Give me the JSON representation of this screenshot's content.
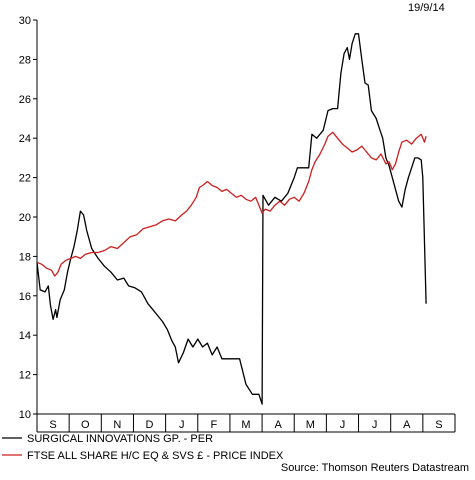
{
  "date_label": "19/9/14",
  "source": "Source: Thomson Reuters Datastream",
  "chart_data": {
    "type": "line",
    "ylim": [
      10,
      30
    ],
    "yticks": [
      "10",
      "12",
      "14",
      "16",
      "18",
      "20",
      "22",
      "24",
      "26",
      "28",
      "30"
    ],
    "months": [
      "S",
      "O",
      "N",
      "D",
      "J",
      "F",
      "M",
      "A",
      "M",
      "J",
      "J",
      "A",
      "S"
    ],
    "grid": false,
    "legend_position": "bottom",
    "series": [
      {
        "name": "SURGICAL INNOVATIONS GP. - PER",
        "color": "#000000",
        "values": [
          [
            0.0,
            17.7
          ],
          [
            0.1,
            16.3
          ],
          [
            0.25,
            16.2
          ],
          [
            0.35,
            16.5
          ],
          [
            0.42,
            15.5
          ],
          [
            0.5,
            14.8
          ],
          [
            0.58,
            15.3
          ],
          [
            0.62,
            14.9
          ],
          [
            0.72,
            15.8
          ],
          [
            0.85,
            16.3
          ],
          [
            0.95,
            17.2
          ],
          [
            1.05,
            17.9
          ],
          [
            1.15,
            18.5
          ],
          [
            1.25,
            19.3
          ],
          [
            1.35,
            20.3
          ],
          [
            1.45,
            20.1
          ],
          [
            1.55,
            19.3
          ],
          [
            1.7,
            18.4
          ],
          [
            1.9,
            17.9
          ],
          [
            2.1,
            17.5
          ],
          [
            2.3,
            17.2
          ],
          [
            2.5,
            16.8
          ],
          [
            2.7,
            16.9
          ],
          [
            2.85,
            16.5
          ],
          [
            3.05,
            16.4
          ],
          [
            3.25,
            16.2
          ],
          [
            3.45,
            15.6
          ],
          [
            3.6,
            15.3
          ],
          [
            3.75,
            15.0
          ],
          [
            3.9,
            14.7
          ],
          [
            4.05,
            14.3
          ],
          [
            4.2,
            13.7
          ],
          [
            4.3,
            13.4
          ],
          [
            4.4,
            12.6
          ],
          [
            4.55,
            13.1
          ],
          [
            4.7,
            13.8
          ],
          [
            4.85,
            13.4
          ],
          [
            5.0,
            13.8
          ],
          [
            5.15,
            13.4
          ],
          [
            5.3,
            13.6
          ],
          [
            5.45,
            13.0
          ],
          [
            5.6,
            13.4
          ],
          [
            5.75,
            12.8
          ],
          [
            6.0,
            12.8
          ],
          [
            6.3,
            12.8
          ],
          [
            6.5,
            11.5
          ],
          [
            6.7,
            11.0
          ],
          [
            6.9,
            11.0
          ],
          [
            7.0,
            10.5
          ],
          [
            7.03,
            21.1
          ],
          [
            7.2,
            20.6
          ],
          [
            7.4,
            21.0
          ],
          [
            7.6,
            20.8
          ],
          [
            7.8,
            21.2
          ],
          [
            8.0,
            22.0
          ],
          [
            8.1,
            22.5
          ],
          [
            8.3,
            22.5
          ],
          [
            8.45,
            22.5
          ],
          [
            8.55,
            24.2
          ],
          [
            8.7,
            24.0
          ],
          [
            8.9,
            24.4
          ],
          [
            9.05,
            25.4
          ],
          [
            9.2,
            25.5
          ],
          [
            9.35,
            25.5
          ],
          [
            9.45,
            27.3
          ],
          [
            9.55,
            28.3
          ],
          [
            9.65,
            28.6
          ],
          [
            9.72,
            28.0
          ],
          [
            9.8,
            28.8
          ],
          [
            9.9,
            29.3
          ],
          [
            10.0,
            29.3
          ],
          [
            10.1,
            28.0
          ],
          [
            10.2,
            26.8
          ],
          [
            10.3,
            26.7
          ],
          [
            10.4,
            25.4
          ],
          [
            10.55,
            25.0
          ],
          [
            10.65,
            24.5
          ],
          [
            10.75,
            24.0
          ],
          [
            10.85,
            23.0
          ],
          [
            10.95,
            22.6
          ],
          [
            11.05,
            22.0
          ],
          [
            11.15,
            21.4
          ],
          [
            11.25,
            20.8
          ],
          [
            11.35,
            20.5
          ],
          [
            11.45,
            21.4
          ],
          [
            11.55,
            22.0
          ],
          [
            11.65,
            22.5
          ],
          [
            11.75,
            23.0
          ],
          [
            11.85,
            23.0
          ],
          [
            11.95,
            22.9
          ],
          [
            12.0,
            22.0
          ],
          [
            12.1,
            15.6
          ]
        ]
      },
      {
        "name": "FTSE ALL SHARE H/C EQ & SVS £ - PRICE INDEX",
        "color": "#cc1f1f",
        "values": [
          [
            0.0,
            17.7
          ],
          [
            0.15,
            17.6
          ],
          [
            0.3,
            17.4
          ],
          [
            0.45,
            17.3
          ],
          [
            0.55,
            17.0
          ],
          [
            0.65,
            17.2
          ],
          [
            0.75,
            17.6
          ],
          [
            0.9,
            17.8
          ],
          [
            1.05,
            17.9
          ],
          [
            1.2,
            18.0
          ],
          [
            1.35,
            17.9
          ],
          [
            1.5,
            18.1
          ],
          [
            1.7,
            18.2
          ],
          [
            1.9,
            18.2
          ],
          [
            2.1,
            18.3
          ],
          [
            2.3,
            18.5
          ],
          [
            2.5,
            18.4
          ],
          [
            2.7,
            18.7
          ],
          [
            2.9,
            19.0
          ],
          [
            3.1,
            19.1
          ],
          [
            3.3,
            19.4
          ],
          [
            3.5,
            19.5
          ],
          [
            3.7,
            19.6
          ],
          [
            3.9,
            19.8
          ],
          [
            4.1,
            19.9
          ],
          [
            4.3,
            19.8
          ],
          [
            4.5,
            20.1
          ],
          [
            4.65,
            20.3
          ],
          [
            4.8,
            20.6
          ],
          [
            4.95,
            21.0
          ],
          [
            5.05,
            21.5
          ],
          [
            5.15,
            21.6
          ],
          [
            5.3,
            21.8
          ],
          [
            5.45,
            21.6
          ],
          [
            5.6,
            21.5
          ],
          [
            5.75,
            21.3
          ],
          [
            5.9,
            21.4
          ],
          [
            6.05,
            21.2
          ],
          [
            6.2,
            21.0
          ],
          [
            6.35,
            21.1
          ],
          [
            6.5,
            20.9
          ],
          [
            6.65,
            20.8
          ],
          [
            6.8,
            21.0
          ],
          [
            6.9,
            20.6
          ],
          [
            7.0,
            20.2
          ],
          [
            7.1,
            20.4
          ],
          [
            7.25,
            20.3
          ],
          [
            7.4,
            20.6
          ],
          [
            7.55,
            20.8
          ],
          [
            7.7,
            20.6
          ],
          [
            7.85,
            20.9
          ],
          [
            8.0,
            21.0
          ],
          [
            8.15,
            20.8
          ],
          [
            8.3,
            21.2
          ],
          [
            8.45,
            21.8
          ],
          [
            8.55,
            22.4
          ],
          [
            8.65,
            22.8
          ],
          [
            8.8,
            23.2
          ],
          [
            8.95,
            23.7
          ],
          [
            9.05,
            24.1
          ],
          [
            9.2,
            24.3
          ],
          [
            9.35,
            24.0
          ],
          [
            9.5,
            23.7
          ],
          [
            9.65,
            23.5
          ],
          [
            9.8,
            23.3
          ],
          [
            9.95,
            23.4
          ],
          [
            10.1,
            23.6
          ],
          [
            10.25,
            23.3
          ],
          [
            10.4,
            23.0
          ],
          [
            10.55,
            22.9
          ],
          [
            10.7,
            23.2
          ],
          [
            10.85,
            22.7
          ],
          [
            10.95,
            22.8
          ],
          [
            11.05,
            22.4
          ],
          [
            11.15,
            22.7
          ],
          [
            11.25,
            23.3
          ],
          [
            11.35,
            23.8
          ],
          [
            11.5,
            23.9
          ],
          [
            11.65,
            23.7
          ],
          [
            11.8,
            24.0
          ],
          [
            11.95,
            24.2
          ],
          [
            12.05,
            23.8
          ],
          [
            12.1,
            24.1
          ]
        ]
      }
    ]
  }
}
